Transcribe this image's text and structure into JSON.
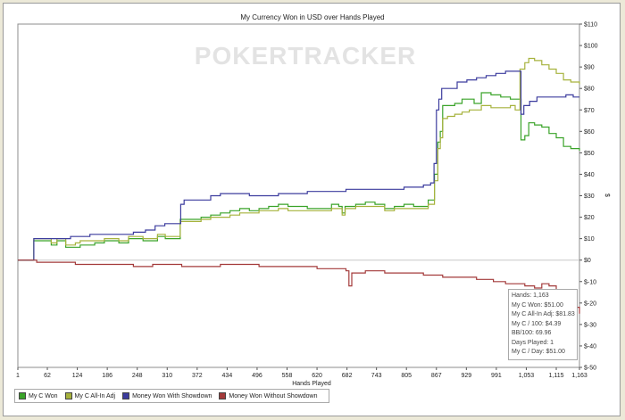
{
  "chart_data": {
    "type": "line",
    "title": "My Currency Won in USD over Hands Played",
    "xlabel": "Hands Played",
    "ylabel": "$",
    "watermark": "POKERTRACKER",
    "xlim": [
      1,
      1163
    ],
    "ylim": [
      -50,
      110
    ],
    "yticks": [
      110,
      100,
      90,
      80,
      70,
      60,
      50,
      40,
      30,
      20,
      10,
      0,
      -10,
      -20,
      -30,
      -40,
      -50
    ],
    "ytick_labels": [
      "$110",
      "$100",
      "$90",
      "$80",
      "$70",
      "$60",
      "$50",
      "$40",
      "$30",
      "$20",
      "$10",
      "$0",
      "$-10",
      "$-20",
      "$-30",
      "$-40",
      "$-50"
    ],
    "xticks": [
      1,
      62,
      124,
      186,
      248,
      310,
      372,
      434,
      496,
      558,
      620,
      682,
      743,
      805,
      867,
      929,
      991,
      1053,
      1115,
      1163
    ],
    "xtick_labels": [
      "1",
      "62",
      "124",
      "186",
      "248",
      "310",
      "372",
      "434",
      "496",
      "558",
      "620",
      "682",
      "743",
      "805",
      "867",
      "929",
      "991",
      "1,053",
      "1,115",
      "1,163"
    ],
    "legend_position": "bottom-left",
    "series": [
      {
        "name": "My C Won",
        "color": "#3aa329",
        "points": [
          [
            1,
            0
          ],
          [
            30,
            0
          ],
          [
            34,
            9
          ],
          [
            60,
            9
          ],
          [
            70,
            7
          ],
          [
            82,
            9
          ],
          [
            100,
            6
          ],
          [
            120,
            6
          ],
          [
            130,
            7
          ],
          [
            160,
            8
          ],
          [
            180,
            9
          ],
          [
            210,
            8
          ],
          [
            230,
            10
          ],
          [
            260,
            9
          ],
          [
            280,
            9
          ],
          [
            290,
            11
          ],
          [
            306,
            10
          ],
          [
            320,
            10
          ],
          [
            330,
            10
          ],
          [
            337,
            19
          ],
          [
            345,
            19
          ],
          [
            360,
            19
          ],
          [
            380,
            20
          ],
          [
            400,
            21
          ],
          [
            420,
            22
          ],
          [
            440,
            23
          ],
          [
            460,
            24
          ],
          [
            480,
            23
          ],
          [
            500,
            24
          ],
          [
            520,
            25
          ],
          [
            540,
            26
          ],
          [
            560,
            25
          ],
          [
            580,
            25
          ],
          [
            600,
            24
          ],
          [
            620,
            24
          ],
          [
            650,
            26
          ],
          [
            665,
            25
          ],
          [
            672,
            22
          ],
          [
            678,
            25
          ],
          [
            700,
            26
          ],
          [
            720,
            27
          ],
          [
            740,
            26
          ],
          [
            760,
            24
          ],
          [
            780,
            25
          ],
          [
            800,
            26
          ],
          [
            820,
            25
          ],
          [
            840,
            25
          ],
          [
            850,
            28
          ],
          [
            858,
            28
          ],
          [
            863,
            40
          ],
          [
            870,
            55
          ],
          [
            875,
            60
          ],
          [
            880,
            72
          ],
          [
            890,
            72
          ],
          [
            905,
            73
          ],
          [
            920,
            75
          ],
          [
            935,
            75
          ],
          [
            945,
            73
          ],
          [
            960,
            78
          ],
          [
            980,
            77
          ],
          [
            1000,
            76
          ],
          [
            1020,
            75
          ],
          [
            1035,
            75
          ],
          [
            1042,
            56
          ],
          [
            1050,
            58
          ],
          [
            1058,
            64
          ],
          [
            1070,
            63
          ],
          [
            1085,
            62
          ],
          [
            1100,
            59
          ],
          [
            1115,
            57
          ],
          [
            1130,
            53
          ],
          [
            1145,
            52
          ],
          [
            1163,
            51
          ]
        ]
      },
      {
        "name": "My C All-In Adj",
        "color": "#a6b23c",
        "points": [
          [
            1,
            0
          ],
          [
            30,
            0
          ],
          [
            34,
            10
          ],
          [
            60,
            10
          ],
          [
            70,
            8
          ],
          [
            82,
            10
          ],
          [
            100,
            7
          ],
          [
            120,
            8
          ],
          [
            130,
            9
          ],
          [
            160,
            9
          ],
          [
            180,
            10
          ],
          [
            210,
            9
          ],
          [
            230,
            11
          ],
          [
            260,
            10
          ],
          [
            280,
            10
          ],
          [
            290,
            12
          ],
          [
            306,
            11
          ],
          [
            320,
            11
          ],
          [
            330,
            11
          ],
          [
            337,
            18
          ],
          [
            345,
            18
          ],
          [
            360,
            18
          ],
          [
            380,
            19
          ],
          [
            400,
            20
          ],
          [
            420,
            20
          ],
          [
            440,
            21
          ],
          [
            460,
            22
          ],
          [
            480,
            22
          ],
          [
            500,
            23
          ],
          [
            520,
            23
          ],
          [
            540,
            24
          ],
          [
            560,
            23
          ],
          [
            580,
            23
          ],
          [
            600,
            23
          ],
          [
            620,
            23
          ],
          [
            650,
            24
          ],
          [
            665,
            24
          ],
          [
            672,
            21
          ],
          [
            678,
            24
          ],
          [
            700,
            25
          ],
          [
            720,
            25
          ],
          [
            740,
            25
          ],
          [
            760,
            23
          ],
          [
            780,
            24
          ],
          [
            800,
            24
          ],
          [
            820,
            24
          ],
          [
            840,
            24
          ],
          [
            850,
            26
          ],
          [
            858,
            26
          ],
          [
            863,
            37
          ],
          [
            870,
            52
          ],
          [
            875,
            57
          ],
          [
            880,
            66
          ],
          [
            890,
            67
          ],
          [
            905,
            68
          ],
          [
            920,
            69
          ],
          [
            935,
            70
          ],
          [
            945,
            70
          ],
          [
            960,
            72
          ],
          [
            980,
            71
          ],
          [
            1000,
            71
          ],
          [
            1020,
            72
          ],
          [
            1030,
            70
          ],
          [
            1040,
            89
          ],
          [
            1050,
            92
          ],
          [
            1058,
            94
          ],
          [
            1070,
            93
          ],
          [
            1085,
            91
          ],
          [
            1100,
            89
          ],
          [
            1115,
            87
          ],
          [
            1130,
            84
          ],
          [
            1145,
            83
          ],
          [
            1163,
            82
          ]
        ]
      },
      {
        "name": "Money Won With Showdown",
        "color": "#3c3c9e",
        "points": [
          [
            1,
            0
          ],
          [
            30,
            0
          ],
          [
            34,
            10
          ],
          [
            60,
            10
          ],
          [
            90,
            10
          ],
          [
            110,
            11
          ],
          [
            150,
            12
          ],
          [
            200,
            12
          ],
          [
            240,
            13
          ],
          [
            265,
            14
          ],
          [
            285,
            16
          ],
          [
            305,
            17
          ],
          [
            325,
            17
          ],
          [
            338,
            26
          ],
          [
            345,
            28
          ],
          [
            365,
            28
          ],
          [
            385,
            28
          ],
          [
            400,
            30
          ],
          [
            420,
            31
          ],
          [
            440,
            31
          ],
          [
            460,
            31
          ],
          [
            480,
            30
          ],
          [
            500,
            30
          ],
          [
            520,
            30
          ],
          [
            540,
            31
          ],
          [
            560,
            31
          ],
          [
            580,
            31
          ],
          [
            600,
            32
          ],
          [
            620,
            32
          ],
          [
            640,
            32
          ],
          [
            660,
            32
          ],
          [
            680,
            33
          ],
          [
            700,
            33
          ],
          [
            720,
            33
          ],
          [
            740,
            33
          ],
          [
            760,
            33
          ],
          [
            780,
            33
          ],
          [
            800,
            34
          ],
          [
            820,
            34
          ],
          [
            840,
            35
          ],
          [
            855,
            36
          ],
          [
            862,
            45
          ],
          [
            867,
            70
          ],
          [
            872,
            75
          ],
          [
            878,
            80
          ],
          [
            890,
            80
          ],
          [
            910,
            83
          ],
          [
            930,
            84
          ],
          [
            950,
            85
          ],
          [
            970,
            86
          ],
          [
            990,
            87
          ],
          [
            1010,
            88
          ],
          [
            1035,
            88
          ],
          [
            1042,
            68
          ],
          [
            1048,
            72
          ],
          [
            1060,
            74
          ],
          [
            1075,
            76
          ],
          [
            1090,
            76
          ],
          [
            1105,
            76
          ],
          [
            1120,
            76
          ],
          [
            1135,
            77
          ],
          [
            1150,
            76
          ],
          [
            1163,
            76
          ]
        ]
      },
      {
        "name": "Money Won Without Showdown",
        "color": "#a33a3a",
        "points": [
          [
            1,
            0
          ],
          [
            30,
            0
          ],
          [
            40,
            -1
          ],
          [
            80,
            -1
          ],
          [
            120,
            -2
          ],
          [
            160,
            -2
          ],
          [
            200,
            -2
          ],
          [
            240,
            -3
          ],
          [
            280,
            -2
          ],
          [
            310,
            -2
          ],
          [
            340,
            -3
          ],
          [
            380,
            -3
          ],
          [
            420,
            -2
          ],
          [
            460,
            -2
          ],
          [
            500,
            -3
          ],
          [
            540,
            -3
          ],
          [
            580,
            -3
          ],
          [
            620,
            -4
          ],
          [
            660,
            -4
          ],
          [
            680,
            -5
          ],
          [
            686,
            -12
          ],
          [
            692,
            -6
          ],
          [
            720,
            -5
          ],
          [
            760,
            -6
          ],
          [
            800,
            -6
          ],
          [
            840,
            -7
          ],
          [
            880,
            -8
          ],
          [
            910,
            -8
          ],
          [
            950,
            -9
          ],
          [
            985,
            -10
          ],
          [
            1010,
            -11
          ],
          [
            1030,
            -11
          ],
          [
            1050,
            -12
          ],
          [
            1070,
            -13
          ],
          [
            1085,
            -11
          ],
          [
            1100,
            -12
          ],
          [
            1115,
            -14
          ],
          [
            1130,
            -17
          ],
          [
            1145,
            -20
          ],
          [
            1155,
            -22
          ],
          [
            1163,
            -25
          ]
        ]
      }
    ]
  },
  "tooltip": {
    "lines": [
      "Hands: 1,163",
      "My C Won: $51.00",
      "My C All-In Adj: $81.83",
      "My C / 100: $4.39",
      "BB/100: 69.96",
      "Days Played: 1",
      "My C / Day: $51.00"
    ]
  }
}
